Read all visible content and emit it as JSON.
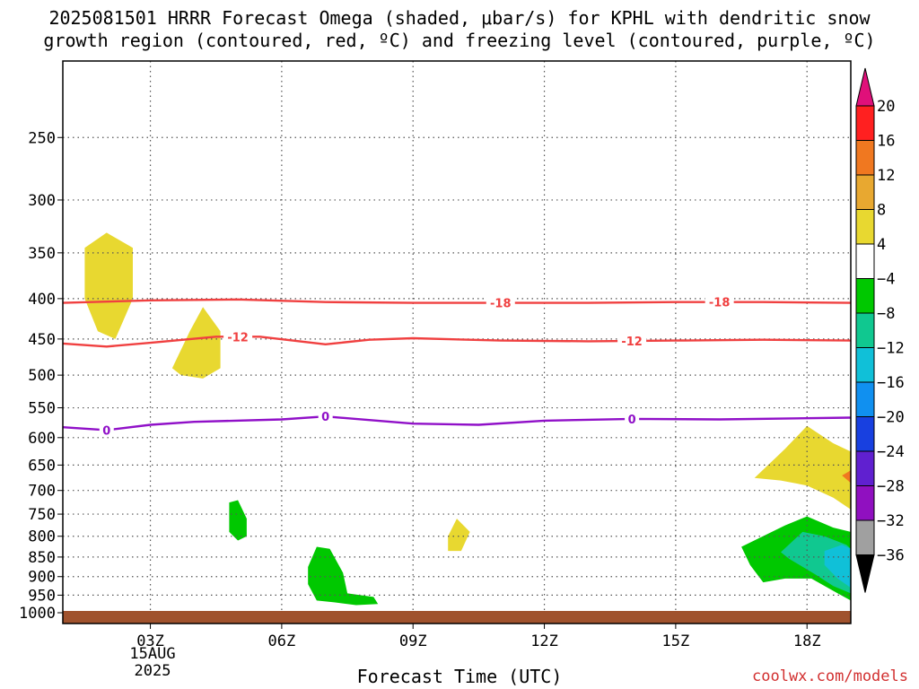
{
  "title": {
    "line1": "2025081501 HRRR Forecast Omega (shaded, μbar/s) for KPHL with dendritic snow",
    "line2": "growth region (contoured, red, ºC) and freezing level (contoured, purple, ºC)"
  },
  "footer": {
    "credit": "coolwx.com/models"
  },
  "chart_data": {
    "type": "heatmap",
    "title": "2025081501 HRRR Forecast Omega (shaded, μbar/s) for KPHL with dendritic snow growth region (contoured, red, ºC) and freezing level (contoured, purple, ºC)",
    "xlabel": "Forecast Time (UTC)",
    "ylabel": "",
    "x_unit": "hours since 2025-08-15 00Z",
    "xlim": [
      1,
      19
    ],
    "ylim": [
      1000,
      200
    ],
    "y_scale": "log-pressure",
    "grid": true,
    "x_ticks": [
      {
        "value": 3,
        "label": "03Z"
      },
      {
        "value": 6,
        "label": "06Z"
      },
      {
        "value": 9,
        "label": "09Z"
      },
      {
        "value": 12,
        "label": "12Z"
      },
      {
        "value": 15,
        "label": "15Z"
      },
      {
        "value": 18,
        "label": "18Z"
      }
    ],
    "date_label": [
      "15AUG",
      "2025"
    ],
    "y_ticks": [
      250,
      300,
      350,
      400,
      450,
      500,
      550,
      600,
      650,
      700,
      750,
      800,
      850,
      900,
      950,
      1000
    ],
    "colorbar": {
      "labels": [
        "20",
        "16",
        "12",
        "8",
        "4",
        "−4",
        "−8",
        "−12",
        "−16",
        "−20",
        "−24",
        "−28",
        "−32",
        "−36"
      ],
      "colors": [
        "#ff2020",
        "#f07820",
        "#e8a830",
        "#e8d830",
        "#ffffff",
        "#00c800",
        "#10c890",
        "#10c0d8",
        "#1090f0",
        "#1840e0",
        "#6020d0",
        "#9010c0",
        "#a0a0a0"
      ],
      "top_arrow_color": "#e0107a",
      "bottom_arrow_color": "#000000"
    },
    "contours": [
      {
        "name": "-18",
        "color": "#f04040",
        "points": [
          [
            1,
            405
          ],
          [
            3,
            402
          ],
          [
            5,
            401
          ],
          [
            7,
            404
          ],
          [
            9,
            405
          ],
          [
            11,
            405
          ],
          [
            13,
            405
          ],
          [
            15,
            404
          ],
          [
            17,
            404
          ],
          [
            19,
            405
          ]
        ],
        "label_x": [
          11,
          16
        ]
      },
      {
        "name": "-12",
        "color": "#f04040",
        "points": [
          [
            1,
            456
          ],
          [
            2,
            460
          ],
          [
            3,
            455
          ],
          [
            4.5,
            447
          ],
          [
            5.5,
            447
          ],
          [
            7,
            457
          ],
          [
            8,
            451
          ],
          [
            9,
            449
          ],
          [
            11,
            452
          ],
          [
            13,
            453
          ],
          [
            15,
            452
          ],
          [
            17,
            451
          ],
          [
            19,
            452
          ]
        ],
        "label_x": [
          5,
          14
        ]
      },
      {
        "name": "0",
        "color": "#9010c8",
        "points": [
          [
            1,
            582
          ],
          [
            2,
            587
          ],
          [
            3,
            578
          ],
          [
            4,
            573
          ],
          [
            6,
            569
          ],
          [
            7,
            564
          ],
          [
            9,
            576
          ],
          [
            10.5,
            578
          ],
          [
            12,
            571
          ],
          [
            14,
            568
          ],
          [
            16,
            569
          ],
          [
            19,
            566
          ]
        ],
        "label_x": [
          2,
          7,
          14
        ]
      }
    ],
    "shaded_regions": [
      {
        "value": 6,
        "color": "#e8d830",
        "points": [
          [
            1.5,
            345
          ],
          [
            2,
            330
          ],
          [
            2.6,
            345
          ],
          [
            2.6,
            400
          ],
          [
            2.2,
            450
          ],
          [
            1.8,
            440
          ],
          [
            1.5,
            400
          ]
        ]
      },
      {
        "value": 6,
        "color": "#e8d830",
        "points": [
          [
            3.5,
            490
          ],
          [
            3.9,
            440
          ],
          [
            4.2,
            410
          ],
          [
            4.6,
            440
          ],
          [
            4.6,
            490
          ],
          [
            4.2,
            505
          ],
          [
            3.7,
            500
          ]
        ]
      },
      {
        "value": -6,
        "color": "#00c800",
        "points": [
          [
            4.8,
            725
          ],
          [
            5,
            720
          ],
          [
            5.2,
            760
          ],
          [
            5.2,
            800
          ],
          [
            5,
            810
          ],
          [
            4.8,
            790
          ]
        ]
      },
      {
        "value": 6,
        "color": "#e8d830",
        "points": [
          [
            9.8,
            800
          ],
          [
            10,
            760
          ],
          [
            10.3,
            790
          ],
          [
            10.1,
            835
          ],
          [
            9.8,
            835
          ]
        ]
      },
      {
        "value": -6,
        "color": "#00c800",
        "points": [
          [
            6.6,
            875
          ],
          [
            6.8,
            825
          ],
          [
            7.1,
            830
          ],
          [
            7.4,
            890
          ],
          [
            7.5,
            945
          ],
          [
            8.1,
            955
          ],
          [
            8.2,
            975
          ],
          [
            7.7,
            978
          ],
          [
            7.2,
            970
          ],
          [
            6.8,
            965
          ],
          [
            6.6,
            920
          ]
        ]
      },
      {
        "value": 6,
        "color": "#e8d830",
        "points": [
          [
            16.8,
            675
          ],
          [
            17.5,
            620
          ],
          [
            18,
            580
          ],
          [
            18.6,
            610
          ],
          [
            19,
            625
          ],
          [
            19,
            740
          ],
          [
            18.6,
            715
          ],
          [
            18,
            690
          ],
          [
            17.4,
            680
          ]
        ]
      },
      {
        "value": 12,
        "color": "#f07820",
        "points": [
          [
            18.8,
            670
          ],
          [
            19,
            660
          ],
          [
            19,
            685
          ]
        ]
      },
      {
        "value": -6,
        "color": "#00c800",
        "points": [
          [
            16.5,
            825
          ],
          [
            17.5,
            775
          ],
          [
            18,
            755
          ],
          [
            18.6,
            780
          ],
          [
            19,
            790
          ],
          [
            19,
            965
          ],
          [
            18.7,
            945
          ],
          [
            18.1,
            905
          ],
          [
            17.5,
            905
          ],
          [
            17,
            915
          ],
          [
            16.7,
            870
          ]
        ]
      },
      {
        "value": -10,
        "color": "#10c890",
        "points": [
          [
            17.4,
            838
          ],
          [
            17.9,
            790
          ],
          [
            18.4,
            800
          ],
          [
            18.9,
            820
          ],
          [
            19,
            830
          ],
          [
            19,
            945
          ],
          [
            18.6,
            925
          ],
          [
            18.2,
            895
          ],
          [
            17.6,
            855
          ]
        ]
      },
      {
        "value": -12,
        "color": "#10c0d8",
        "points": [
          [
            18.4,
            835
          ],
          [
            18.8,
            820
          ],
          [
            19,
            830
          ],
          [
            19,
            930
          ],
          [
            18.7,
            905
          ],
          [
            18.4,
            870
          ]
        ]
      }
    ],
    "terrain_color": "#a0522d"
  }
}
